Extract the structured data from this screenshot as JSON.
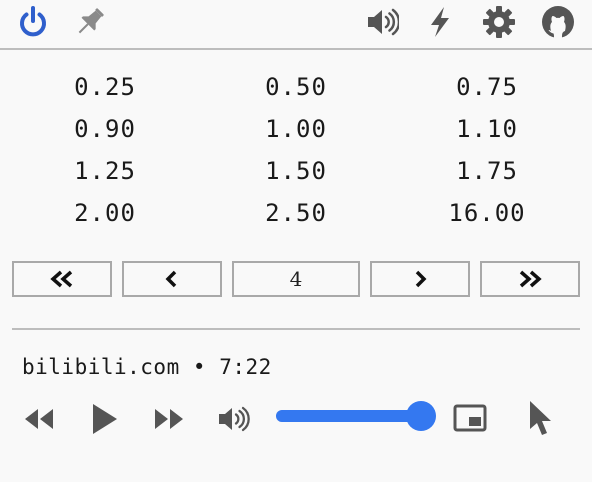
{
  "toolbar": {
    "left": [
      {
        "name": "power-icon",
        "color": "#2f5fcc"
      },
      {
        "name": "pin-icon",
        "color": "#8a8a8a"
      }
    ],
    "right": [
      {
        "name": "volume-icon",
        "color": "#555555"
      },
      {
        "name": "lightning-icon",
        "color": "#555555"
      },
      {
        "name": "gear-icon",
        "color": "#555555"
      },
      {
        "name": "github-icon",
        "color": "#555555"
      }
    ]
  },
  "speeds": [
    [
      "0.25",
      "0.50",
      "0.75"
    ],
    [
      "0.90",
      "1.00",
      "1.10"
    ],
    [
      "1.25",
      "1.50",
      "1.75"
    ],
    [
      "2.00",
      "2.50",
      "16.00"
    ]
  ],
  "pager": {
    "first_icon": "double-chevron-left-icon",
    "prev_icon": "chevron-left-icon",
    "page": "4",
    "next_icon": "chevron-right-icon",
    "last_icon": "double-chevron-right-icon"
  },
  "media": {
    "site": "bilibili.com",
    "separator": "•",
    "time": "7:22",
    "volume_percent": 100,
    "accent_color": "#3478f0"
  },
  "controls": [
    "rewind-icon",
    "play-icon",
    "fast-forward-icon",
    "volume-icon",
    "picture-in-picture-icon",
    "cursor-icon"
  ]
}
